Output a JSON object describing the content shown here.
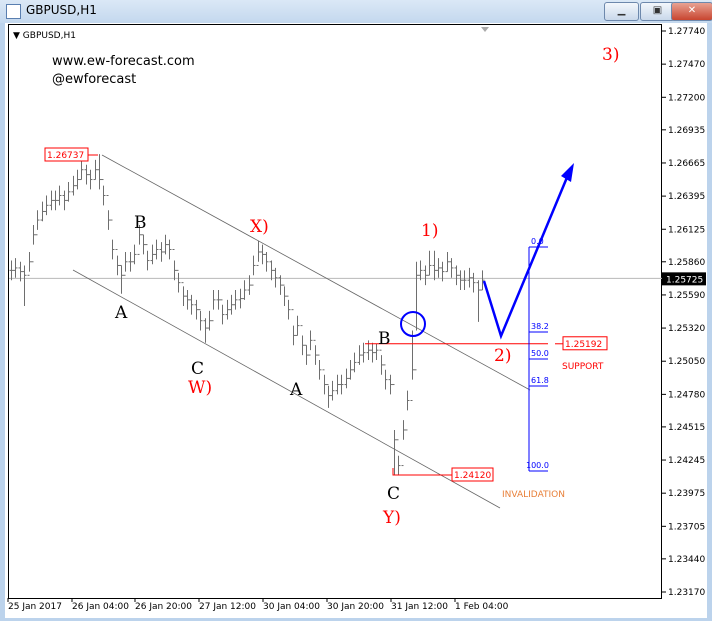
{
  "window": {
    "title": "GBPUSD,H1",
    "minimize_icon": "minimize-icon",
    "maximize_icon": "restore-icon",
    "close_icon": "close-icon"
  },
  "watermark": {
    "site": "www.ew-forecast.com",
    "handle": "@ewforecast"
  },
  "chart_data": {
    "type": "ohlc-bar",
    "title": "GBPUSD,H1",
    "symbol": "GBPUSD",
    "timeframe": "H1",
    "ylim": [
      1.2317,
      1.2774
    ],
    "y_ticks": [
      "1.27740",
      "1.27470",
      "1.27200",
      "1.26935",
      "1.26665",
      "1.26395",
      "1.26125",
      "1.25860",
      "1.25590",
      "1.25320",
      "1.25050",
      "1.24780",
      "1.24515",
      "1.24245",
      "1.23975",
      "1.23705",
      "1.23440",
      "1.23170"
    ],
    "x_ticks": [
      "25 Jan 2017",
      "26 Jan 04:00",
      "26 Jan 20:00",
      "27 Jan 12:00",
      "30 Jan 04:00",
      "30 Jan 20:00",
      "31 Jan 12:00",
      "1 Feb 04:00"
    ],
    "current_price": "1.25725",
    "close": [
      1.2579,
      1.2581,
      1.2578,
      1.2575,
      1.2586,
      1.2608,
      1.262,
      1.2627,
      1.2632,
      1.2636,
      1.2636,
      1.264,
      1.2636,
      1.2643,
      1.2648,
      1.2653,
      1.2661,
      1.2657,
      1.2653,
      1.2661,
      1.2653,
      1.264,
      1.262,
      1.2596,
      1.2583,
      1.2575,
      1.2586,
      1.2586,
      1.2592,
      1.2608,
      1.26,
      1.2587,
      1.2592,
      1.2596,
      1.2594,
      1.26,
      1.2596,
      1.2579,
      1.2569,
      1.2558,
      1.2555,
      1.2551,
      1.2547,
      1.2538,
      1.2532,
      1.2538,
      1.2555,
      1.2555,
      1.2543,
      1.2547,
      1.2551,
      1.2555,
      1.2556,
      1.2563,
      1.2567,
      1.2583,
      1.2594,
      1.2592,
      1.2586,
      1.2579,
      1.2573,
      1.2567,
      1.2558,
      1.2547,
      1.2526,
      1.2534,
      1.2518,
      1.251,
      1.2522,
      1.251,
      1.2498,
      1.2486,
      1.2477,
      1.2481,
      1.2486,
      1.2486,
      1.2491,
      1.2498,
      1.2504,
      1.251,
      1.2512,
      1.2514,
      1.2512,
      1.2514,
      1.2502,
      1.249,
      1.2486,
      1.2441,
      1.242,
      1.2449,
      1.2473,
      1.2498,
      1.2575,
      1.2579,
      1.2575,
      1.2583,
      1.2579,
      1.2581,
      1.2578,
      1.2586,
      1.2581,
      1.2575,
      1.2571,
      1.2571,
      1.2573,
      1.2569,
      1.2563,
      1.2571
    ],
    "high_override": {
      "20": 1.26737,
      "56": 1.2603,
      "83": 1.2519,
      "91": 1.253,
      "92": 1.2586,
      "95": 1.2595,
      "96": 1.2595
    },
    "low_override": {
      "3": 1.255,
      "25": 1.256,
      "44": 1.252,
      "72": 1.2467,
      "87": 1.2412,
      "88": 1.2412,
      "92": 1.253,
      "106": 1.2537
    },
    "bar_half_range": 0.0008,
    "annotations": {
      "high_label": "1.26737",
      "low_label": "1.24120",
      "support_price": "1.25192",
      "support_text": "SUPPORT",
      "invalidation_text": "INVALIDATION",
      "waves": [
        "A",
        "B",
        "C",
        "W)",
        "X)",
        "A",
        "B",
        "C",
        "Y)",
        "1)",
        "2)",
        "3)"
      ],
      "fib_levels": [
        "0.0",
        "38.2",
        "50.0",
        "61.8",
        "100.0"
      ]
    },
    "colors": {
      "bars": "#6e6e6e",
      "wave_red": "#ff0000",
      "projection_blue": "#0000ff",
      "invalidation": "#e8803a"
    }
  }
}
